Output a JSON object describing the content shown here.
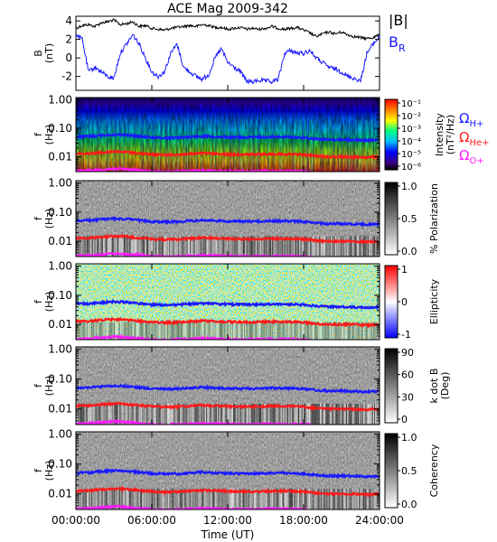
{
  "title": "ACE Mag 2009-342",
  "colors": {
    "b_total": "#000000",
    "b_r": "#1a1aff",
    "omega_h": "#1a1aff",
    "omega_he": "#ff1a1a",
    "omega_o": "#ff1aff"
  },
  "chart_data": [
    {
      "type": "line",
      "panel": "magnetic-field",
      "ylabel": "B",
      "yunit": "(nT)",
      "ylim": [
        -3.5,
        4.5
      ],
      "yticks": [
        -2,
        0,
        2,
        4
      ],
      "xlim": [
        "00:00:00",
        "24:00:00"
      ],
      "series": [
        {
          "name": "|B|",
          "x_hours": [
            0,
            0.5,
            1,
            1.5,
            2,
            2.5,
            3,
            3.5,
            4,
            4.5,
            5,
            5.5,
            6,
            6.5,
            7,
            7.5,
            8,
            8.5,
            9,
            9.5,
            10,
            10.5,
            11,
            11.5,
            12,
            12.5,
            13,
            13.5,
            14,
            14.5,
            15,
            15.5,
            16,
            16.5,
            17,
            17.5,
            18,
            18.5,
            19,
            19.5,
            20,
            20.5,
            21,
            21.5,
            22,
            22.5,
            23,
            23.5,
            24
          ],
          "values": [
            3.2,
            3.5,
            3.6,
            3.4,
            3.8,
            3.9,
            4.1,
            3.6,
            3.7,
            3.9,
            3.4,
            3.5,
            3.2,
            3.1,
            3.0,
            3.2,
            3.3,
            3.4,
            3.5,
            3.4,
            3.6,
            3.5,
            3.3,
            3.3,
            3.1,
            3.2,
            3.3,
            3.1,
            3.2,
            3.1,
            3.2,
            3.4,
            3.2,
            3.1,
            3.2,
            3.3,
            3.0,
            2.7,
            2.3,
            2.6,
            2.8,
            2.6,
            2.8,
            2.5,
            2.3,
            2.2,
            2.1,
            2.2,
            2.5
          ]
        },
        {
          "name": "B_R",
          "x_hours": [
            0,
            0.5,
            1,
            1.5,
            2,
            2.5,
            3,
            3.5,
            4,
            4.5,
            5,
            5.5,
            6,
            6.5,
            7,
            7.5,
            8,
            8.5,
            9,
            9.5,
            10,
            10.5,
            11,
            11.5,
            12,
            12.5,
            13,
            13.5,
            14,
            14.5,
            15,
            15.5,
            16,
            16.5,
            17,
            17.5,
            18,
            18.5,
            19,
            19.5,
            20,
            20.5,
            21,
            21.5,
            22,
            22.5,
            23,
            23.5,
            24
          ],
          "values": [
            2.5,
            2.0,
            -1.5,
            -1.0,
            -1.5,
            -2.0,
            -2.2,
            0.5,
            1.5,
            2.5,
            1.5,
            0.0,
            -1.5,
            -2.0,
            -1.5,
            0.5,
            1.5,
            -1.0,
            -1.5,
            -2.0,
            -2.3,
            -1.8,
            0.0,
            1.0,
            -0.5,
            -1.0,
            -1.5,
            -2.5,
            -2.6,
            -2.4,
            -2.5,
            -2.6,
            -2.3,
            0.5,
            0.8,
            0.5,
            0.5,
            0.8,
            0.0,
            -0.5,
            -1.0,
            -1.2,
            -1.5,
            -2.0,
            -2.2,
            -2.5,
            0.5,
            1.5,
            2.3
          ]
        }
      ]
    },
    {
      "type": "heatmap",
      "panel": "intensity",
      "ylabel": "f",
      "yunit": "(Hz)",
      "yscale": "log",
      "ylim": [
        0.003,
        1.2
      ],
      "yticks": [
        "0.01",
        "0.10",
        "1.00"
      ],
      "colorbar": {
        "label": "Intensity",
        "unit": "(nT²/Hz)",
        "ticks": [
          "10⁻¹",
          "10⁻²",
          "10⁻³",
          "10⁻⁴",
          "10⁻⁵",
          "10⁻⁶"
        ]
      },
      "legend": [
        {
          "name": "Ω",
          "sub": "H+",
          "color": "#1a1aff"
        },
        {
          "name": "Ω",
          "sub": "He+",
          "color": "#ff1a1a"
        },
        {
          "name": "Ω",
          "sub": "O+",
          "color": "#ff1aff"
        }
      ]
    },
    {
      "type": "heatmap",
      "panel": "polarization",
      "ylabel": "f",
      "yunit": "(Hz)",
      "yscale": "log",
      "yticks": [
        "0.01",
        "0.10",
        "1.00"
      ],
      "colorbar": {
        "label": "% Polarization",
        "unit": "",
        "ticks": [
          "1.0",
          "0.5",
          "0.0"
        ]
      }
    },
    {
      "type": "heatmap",
      "panel": "ellipticity",
      "ylabel": "f",
      "yunit": "(Hz)",
      "yscale": "log",
      "yticks": [
        "0.01",
        "0.10",
        "1.00"
      ],
      "colorbar": {
        "label": "Ellipticity",
        "unit": "",
        "ticks": [
          "1",
          "0",
          "-1"
        ]
      }
    },
    {
      "type": "heatmap",
      "panel": "k-dot-b",
      "ylabel": "f",
      "yunit": "(Hz)",
      "yscale": "log",
      "yticks": [
        "0.01",
        "0.10",
        "1.00"
      ],
      "colorbar": {
        "label": "k dot B",
        "unit": "(Deg)",
        "ticks": [
          "90",
          "60",
          "30",
          "0"
        ]
      }
    },
    {
      "type": "heatmap",
      "panel": "coherency",
      "ylabel": "f",
      "yunit": "(Hz)",
      "yscale": "log",
      "yticks": [
        "0.01",
        "0.10",
        "1.00"
      ],
      "colorbar": {
        "label": "Coherency",
        "unit": "",
        "ticks": [
          "1.0",
          "0.5",
          "0.0"
        ]
      }
    }
  ],
  "gyrofrequencies": {
    "x_hours": [
      0,
      1,
      2,
      3,
      4,
      5,
      6,
      7,
      8,
      9,
      10,
      11,
      12,
      13,
      14,
      15,
      16,
      17,
      18,
      19,
      20,
      21,
      22,
      23,
      24
    ],
    "omega_h_hz": [
      0.05,
      0.052,
      0.056,
      0.06,
      0.058,
      0.052,
      0.048,
      0.046,
      0.047,
      0.05,
      0.053,
      0.051,
      0.049,
      0.048,
      0.048,
      0.049,
      0.05,
      0.049,
      0.047,
      0.042,
      0.04,
      0.04,
      0.039,
      0.038,
      0.039
    ],
    "omega_he_hz": [
      0.0125,
      0.013,
      0.014,
      0.015,
      0.0145,
      0.013,
      0.012,
      0.0115,
      0.0118,
      0.0125,
      0.0132,
      0.0128,
      0.0122,
      0.012,
      0.012,
      0.0122,
      0.0125,
      0.0122,
      0.0118,
      0.0105,
      0.01,
      0.01,
      0.0098,
      0.0095,
      0.0098
    ],
    "omega_o_hz": [
      0.0031,
      0.0033,
      0.0035,
      0.0038,
      0.0036,
      0.0033,
      0.003,
      0.0029,
      0.003,
      0.0031,
      0.0033,
      0.0032,
      0.0031,
      0.003,
      0.003,
      0.0031,
      0.0031,
      0.0031,
      0.003,
      0.0026,
      0.0025,
      0.0025,
      0.0024,
      0.0024,
      0.0024
    ]
  },
  "xaxis": {
    "label": "Time (UT)",
    "ticks": [
      "00:00:00",
      "06:00:00",
      "12:00:00",
      "18:00:00",
      "24:00:00"
    ],
    "tick_hours": [
      0,
      6,
      12,
      18,
      24
    ]
  },
  "legend_top": [
    {
      "name": "|B|",
      "sub": "",
      "color": "#000000"
    },
    {
      "name": "B",
      "sub": "R",
      "color": "#1a1aff"
    }
  ]
}
